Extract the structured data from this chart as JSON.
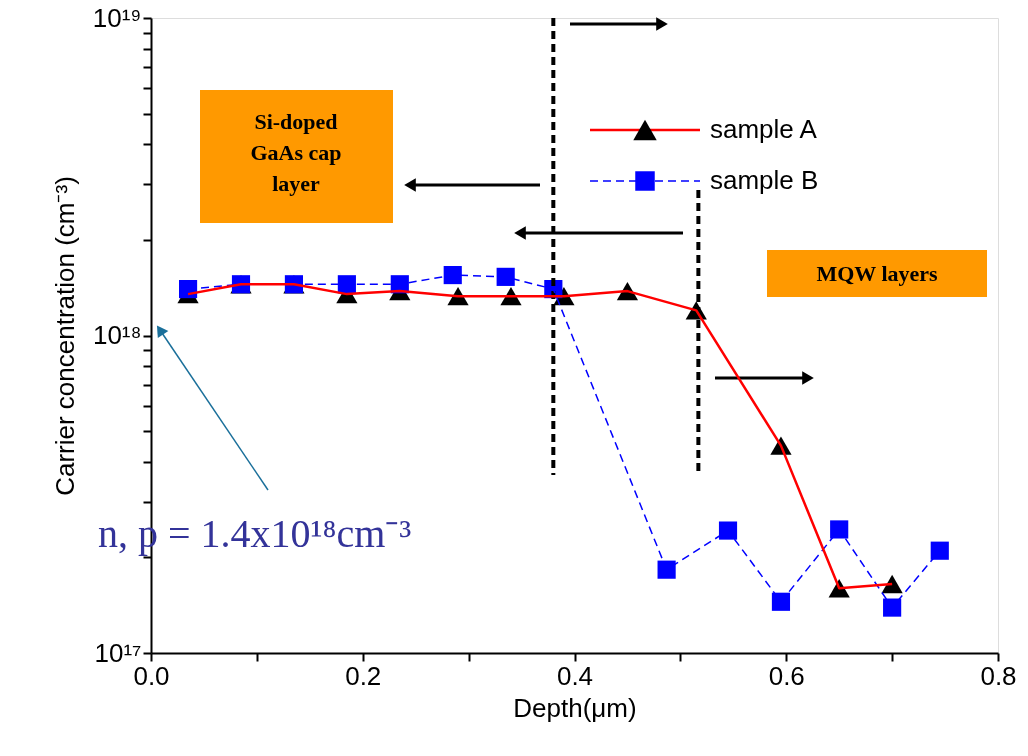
{
  "chart_data": {
    "type": "line",
    "xlabel": "Depth(μm)",
    "ylabel": "Carrier concentration (cm⁻³)",
    "xlim": [
      0,
      0.8
    ],
    "ylim": [
      1e+17,
      1e+19
    ],
    "log": true,
    "grid": false,
    "legend": "top right",
    "xticks": [
      {
        "value": 0,
        "label": "0.0"
      },
      {
        "value": 0.1,
        "label": null
      },
      0.2,
      {
        "value": 0.3,
        "label": null
      },
      0.4,
      {
        "value": 0.5,
        "label": null
      },
      0.6,
      {
        "value": 0.7,
        "label": null
      },
      0.8
    ],
    "yticks": [
      {
        "value": 1e+17,
        "label": "10¹⁷"
      },
      {
        "value": 2e+17,
        "label": null
      },
      {
        "value": 3e+17,
        "label": null
      },
      {
        "value": 4e+17,
        "label": null
      },
      {
        "value": 5e+17,
        "label": null
      },
      {
        "value": 6e+17,
        "label": null
      },
      {
        "value": 7e+17,
        "label": null
      },
      {
        "value": 8e+17,
        "label": null
      },
      {
        "value": 9e+17,
        "label": null
      },
      {
        "value": 1e+18,
        "label": "10¹⁸"
      },
      {
        "value": 2e+18,
        "label": null
      },
      {
        "value": 3e+18,
        "label": null
      },
      {
        "value": 4e+18,
        "label": null
      },
      {
        "value": 5e+18,
        "label": null
      },
      {
        "value": 6e+18,
        "label": null
      },
      {
        "value": 7e+18,
        "label": null
      },
      {
        "value": 8e+18,
        "label": null
      },
      {
        "value": 9e+18,
        "label": null
      },
      {
        "value": 1e+19,
        "label": "10¹⁹"
      }
    ],
    "series": [
      {
        "name": "sample A",
        "color": "#ff0000",
        "marker": "triangle",
        "line_style": "solid",
        "x": [
          0.035,
          0.085,
          0.135,
          0.185,
          0.235,
          0.29,
          0.34,
          0.39,
          0.45,
          0.515,
          0.595,
          0.65,
          0.7
        ],
        "values": [
          1.35e+18,
          1.45e+18,
          1.45e+18,
          1.35e+18,
          1.38e+18,
          1.33e+18,
          1.33e+18,
          1.33e+18,
          1.38e+18,
          1.2e+18,
          4.5e+17,
          1.6e+17,
          1.65e+17
        ]
      },
      {
        "name": "sample B",
        "color": "#0000ff",
        "marker": "square",
        "line_style": "dashed",
        "x": [
          0.035,
          0.085,
          0.135,
          0.185,
          0.235,
          0.285,
          0.335,
          0.38,
          0.487,
          0.545,
          0.595,
          0.65,
          0.7,
          0.745
        ],
        "values": [
          1.4e+18,
          1.45e+18,
          1.45e+18,
          1.45e+18,
          1.45e+18,
          1.55e+18,
          1.53e+18,
          1.4e+18,
          1.83e+17,
          2.43e+17,
          1.45e+17,
          2.45e+17,
          1.39e+17,
          2.1e+17
        ]
      }
    ],
    "ref_lines": [
      {
        "axis": "x",
        "value": 0.38,
        "line_style": "dashed",
        "color": "#000000"
      },
      {
        "axis": "x",
        "value": 0.517,
        "line_style": "dashed",
        "color": "#000000"
      }
    ],
    "annotations": [
      "Si-doped\nGaAs cap\nlayer",
      "MQW layers",
      "n, p = 1.4x10¹⁸cm⁻³"
    ]
  }
}
